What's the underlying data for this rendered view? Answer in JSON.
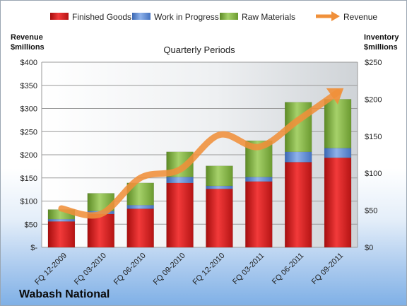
{
  "company_name": "Wabash National",
  "chart_data": {
    "type": "bar",
    "subtype": "stacked bar with line overlay",
    "title": "Quarterly Periods",
    "categories": [
      "FQ 12-2009",
      "FQ 03-2010",
      "FQ 06-2010",
      "FQ 09-2010",
      "FQ 12-2010",
      "FQ 03-2011",
      "FQ 06-2011",
      "FQ 09-2011"
    ],
    "series": [
      {
        "name": "Finished Goods",
        "axis": "right",
        "color": "#e02424",
        "values": [
          35,
          45,
          52,
          87,
          79,
          89,
          115,
          121
        ]
      },
      {
        "name": "Work in Progress",
        "axis": "right",
        "color": "#5b8bd6",
        "values": [
          3,
          4,
          5,
          8,
          4,
          6,
          14,
          13
        ]
      },
      {
        "name": "Raw Materials",
        "axis": "right",
        "color": "#86b84a",
        "values": [
          13,
          24,
          30,
          34,
          27,
          49,
          67,
          66
        ]
      },
      {
        "name": "Revenue",
        "axis": "left",
        "type": "line",
        "color": "#f0903a",
        "values": [
          84,
          72,
          150,
          168,
          243,
          217,
          275,
          335
        ]
      }
    ],
    "left_axis": {
      "label_line1": "Revenue",
      "label_line2": "$millions",
      "min": 0,
      "max": 400,
      "ticks": [
        0,
        50,
        100,
        150,
        200,
        250,
        300,
        350,
        400
      ],
      "tick_labels": [
        "$-",
        "$50",
        "$100",
        "$150",
        "$200",
        "$250",
        "$300",
        "$350",
        "$400"
      ]
    },
    "right_axis": {
      "label_line1": "Inventory",
      "label_line2": "$millions",
      "min": 0,
      "max": 250,
      "ticks": [
        0,
        50,
        100,
        150,
        200,
        250
      ],
      "tick_labels": [
        "$0",
        "$50",
        "$100",
        "$150",
        "$200",
        "$250"
      ]
    },
    "grid": true,
    "legend_position": "top"
  }
}
